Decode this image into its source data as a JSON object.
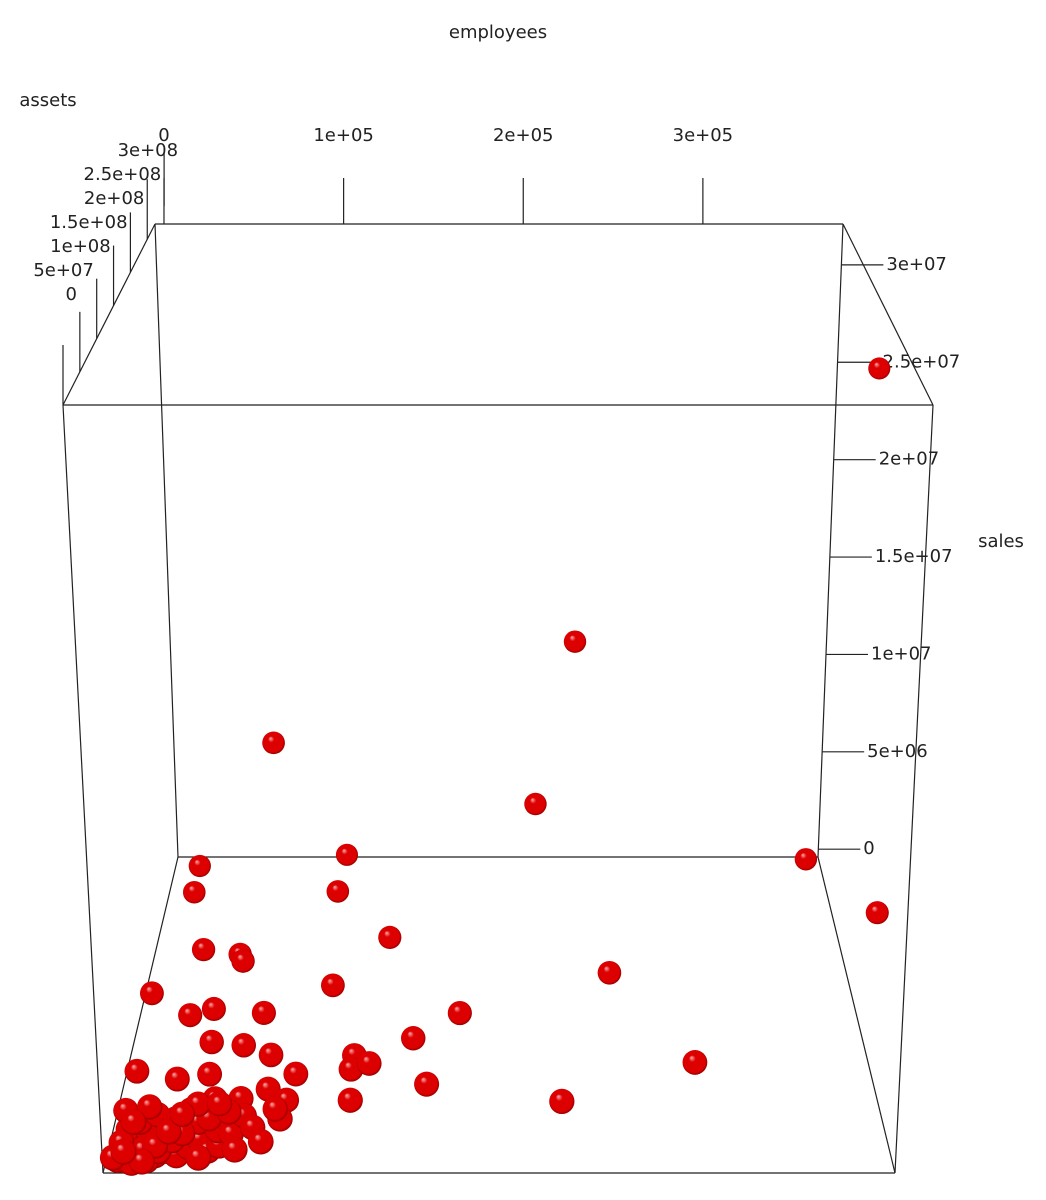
{
  "chart_data": {
    "type": "scatter3d",
    "x_label": "employees",
    "y_label": "assets",
    "z_label": "sales",
    "color": "#dd0000",
    "xlim": [
      -5000,
      378000
    ],
    "ylim": [
      0,
      273000000
    ],
    "zlim": [
      -400000,
      32100000
    ],
    "xticks": [
      0,
      {
        "value": 100000,
        "label": "1e+05"
      },
      {
        "value": 200000,
        "label": "2e+05"
      },
      {
        "value": 300000,
        "label": "3e+05"
      }
    ],
    "yticks": [
      0,
      {
        "value": 50000000,
        "label": "5e+07"
      },
      {
        "value": 100000000,
        "label": "1e+08"
      },
      {
        "value": 150000000,
        "label": "1.5e+08"
      },
      {
        "value": 200000000,
        "label": "2e+08"
      },
      {
        "value": 250000000,
        "label": "2.5e+08"
      },
      {
        "value": 300000000,
        "label": "3e+08"
      }
    ],
    "zticks": [
      0,
      {
        "value": 5000000,
        "label": "5e+06"
      },
      {
        "value": 10000000,
        "label": "1e+07"
      },
      {
        "value": 15000000,
        "label": "1.5e+07"
      },
      {
        "value": 20000000,
        "label": "2e+07"
      },
      {
        "value": 25000000,
        "label": "2.5e+07"
      },
      {
        "value": 30000000,
        "label": "3e+07"
      }
    ],
    "x": [
      400000,
      230000,
      60000,
      208000,
      366000,
      399000,
      11000,
      97000,
      11000,
      94000,
      23000,
      44000,
      46000,
      126000,
      247000,
      97000,
      0,
      166000,
      23000,
      35000,
      62000,
      142000,
      287000,
      37000,
      54000,
      69000,
      112000,
      111000,
      120000,
      83000,
      150000,
      112000,
      218000,
      70000,
      80000,
      78000,
      1500,
      23000,
      39000,
      44000,
      57000,
      2000,
      5000,
      8000,
      12000,
      15000,
      3000,
      20000,
      25000,
      6000,
      10000,
      30000,
      35000,
      18000,
      4000,
      14000,
      22000,
      28000,
      40000,
      45000,
      50000,
      9000,
      17000,
      26000,
      33000,
      1000,
      12000,
      38000,
      48000,
      55000,
      60000,
      7000,
      11000,
      16000,
      21000,
      27000,
      31000,
      43000,
      52000,
      58000,
      3000,
      13000,
      19000,
      24000,
      36000,
      47000,
      2000,
      6000,
      29000,
      41000,
      65000,
      70000,
      75000,
      9000,
      14000,
      0,
      4000
    ],
    "y": [
      265000000,
      246000000,
      225000000,
      243000000,
      247000000,
      200000000,
      255000000,
      263000000,
      233000000,
      232000000,
      184000000,
      178000000,
      174000000,
      191000000,
      162000000,
      152000000,
      146000000,
      126000000,
      127000000,
      132000000,
      128000000,
      105000000,
      82000000,
      104000000,
      101000000,
      92000000,
      92000000,
      79000000,
      85000000,
      76000000,
      65000000,
      53000000,
      49000000,
      63000000,
      53000000,
      37000000,
      79000000,
      72000000,
      76000000,
      55000000,
      55000000,
      2000000,
      5000000,
      1000000,
      3000000,
      8000000,
      12000000,
      4000000,
      10000000,
      20000000,
      15000000,
      6000000,
      12000000,
      18000000,
      28000000,
      25000000,
      22000000,
      30000000,
      20000000,
      9000000,
      14000000,
      35000000,
      40000000,
      38000000,
      45000000,
      42000000,
      48000000,
      33000000,
      28000000,
      24000000,
      40000000,
      1000000,
      7000000,
      2000000,
      9000000,
      16000000,
      25000000,
      36000000,
      44000000,
      10000000,
      6000000,
      11000000,
      13000000,
      27000000,
      50000000,
      48000000,
      17000000,
      33000000,
      42000000,
      3000000,
      30000000,
      18000000,
      45000000,
      0,
      0,
      1000000,
      9000000
    ],
    "z": [
      25000000,
      12000000,
      8000000,
      4000000,
      1000000,
      1000000,
      200000,
      300000,
      150000,
      250000,
      100000,
      200000,
      100000,
      300000,
      200000,
      150000,
      100000,
      250000,
      100000,
      120000,
      150000,
      200000,
      300000,
      80000,
      90000,
      120000,
      100000,
      150000,
      100000,
      90000,
      200000,
      100000,
      250000,
      80000,
      100000,
      90000,
      60000,
      70000,
      80000,
      60000,
      70000,
      50000,
      120000,
      30000,
      80000,
      200000,
      60000,
      150000,
      40000,
      100000,
      70000,
      50000,
      120000,
      30000,
      80000,
      200000,
      60000,
      150000,
      40000,
      100000,
      70000,
      50000,
      120000,
      30000,
      80000,
      200000,
      60000,
      150000,
      40000,
      100000,
      70000,
      50000,
      120000,
      30000,
      80000,
      200000,
      60000,
      150000,
      40000,
      100000,
      70000,
      50000,
      120000,
      30000,
      80000,
      200000,
      60000,
      150000,
      40000,
      100000,
      70000,
      50000,
      120000,
      30000,
      80000,
      200000,
      60000
    ]
  }
}
